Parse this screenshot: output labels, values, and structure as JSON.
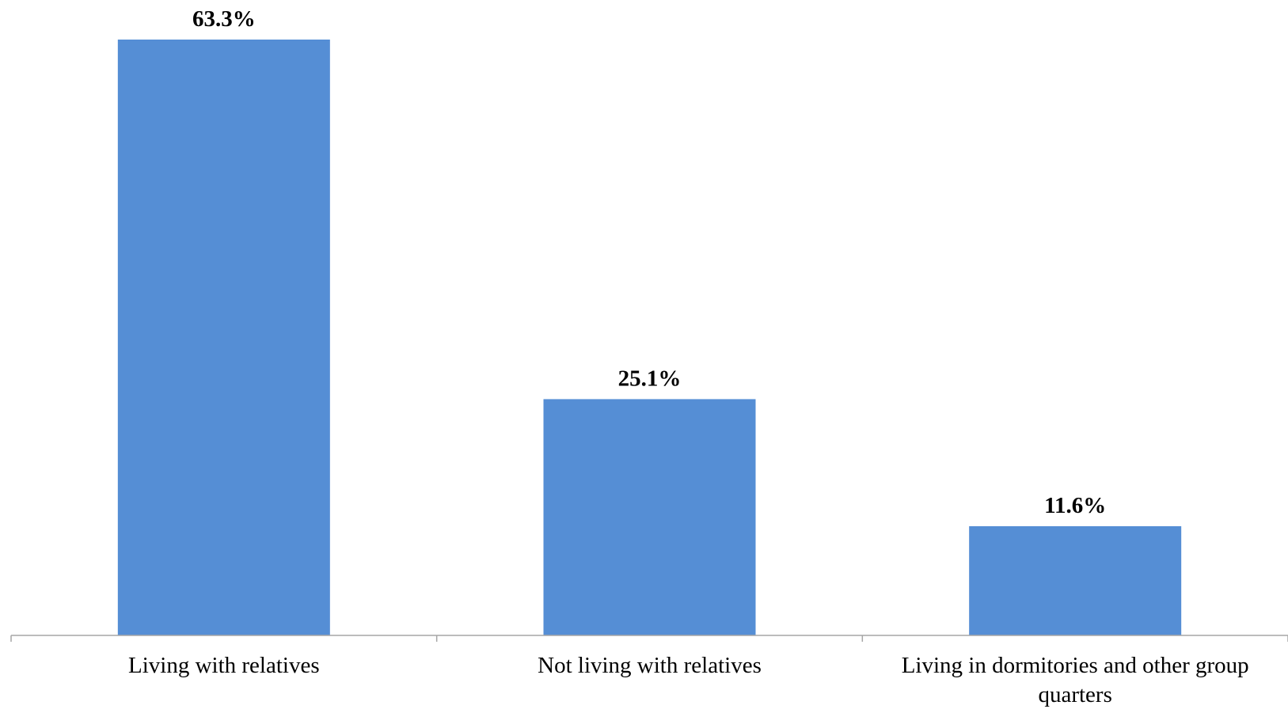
{
  "chart_data": {
    "type": "bar",
    "categories": [
      "Living with relatives",
      "Not living with relatives",
      "Living in dormitories and other group quarters"
    ],
    "values": [
      63.3,
      25.1,
      11.6
    ],
    "data_labels": [
      "63.3%",
      "25.1%",
      "11.6%"
    ],
    "title": "",
    "xlabel": "",
    "ylabel": "",
    "ylim": [
      0,
      63.3
    ],
    "grid": false,
    "legend": "none",
    "bar_color": "#558ed5",
    "axis_color": "#a6a6a6"
  }
}
